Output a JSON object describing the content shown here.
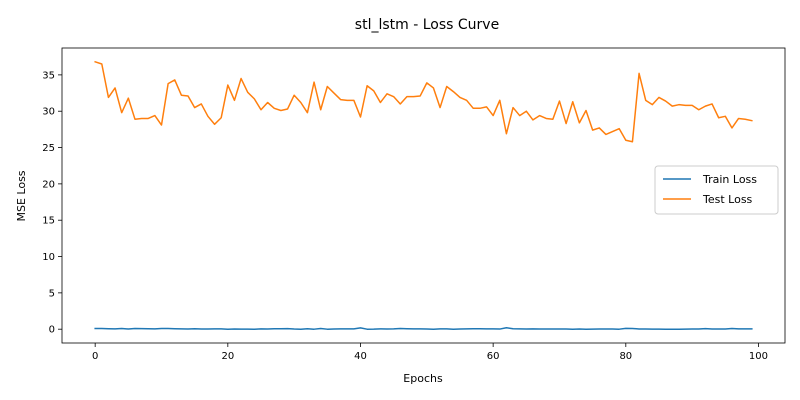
{
  "chart_data": {
    "type": "line",
    "title": "stl_lstm - Loss Curve",
    "xlabel": "Epochs",
    "ylabel": "MSE Loss",
    "xlim": [
      -5,
      104
    ],
    "ylim": [
      -1.9,
      38.7
    ],
    "x_ticks": [
      0,
      20,
      40,
      60,
      80,
      100
    ],
    "y_ticks": [
      0,
      5,
      10,
      15,
      20,
      25,
      30,
      35
    ],
    "grid": false,
    "legend_position": "center-right",
    "series": [
      {
        "name": "Train Loss",
        "color": "#1f77b4",
        "values": [
          0.1,
          0.1,
          0.07,
          0.05,
          0.09,
          0.03,
          0.1,
          0.08,
          0.07,
          0.05,
          0.1,
          0.09,
          0.07,
          0.05,
          0.03,
          0.06,
          0.02,
          0.03,
          0.05,
          0.04,
          0.0,
          0.02,
          0.01,
          0.01,
          0.0,
          0.05,
          0.03,
          0.06,
          0.07,
          0.08,
          0.03,
          0.0,
          0.07,
          0.0,
          0.09,
          0.0,
          0.02,
          0.04,
          0.04,
          0.05,
          0.18,
          0.0,
          0.01,
          0.05,
          0.03,
          0.04,
          0.1,
          0.07,
          0.05,
          0.05,
          0.02,
          0.0,
          0.04,
          0.05,
          0.0,
          0.02,
          0.05,
          0.07,
          0.06,
          0.05,
          0.04,
          0.02,
          0.2,
          0.06,
          0.04,
          0.03,
          0.04,
          0.03,
          0.03,
          0.03,
          0.02,
          0.03,
          0.0,
          0.02,
          0.0,
          0.01,
          0.02,
          0.02,
          0.02,
          0.0,
          0.12,
          0.1,
          0.03,
          0.02,
          0.01,
          0.01,
          0.0,
          0.0,
          0.0,
          0.01,
          0.03,
          0.02,
          0.08,
          0.03,
          0.03,
          0.03,
          0.09,
          0.05,
          0.05,
          0.04
        ]
      },
      {
        "name": "Test Loss",
        "color": "#ff7f0e",
        "values": [
          36.8,
          36.5,
          31.9,
          33.2,
          29.8,
          31.8,
          28.9,
          29.0,
          29.0,
          29.4,
          28.1,
          33.8,
          34.3,
          32.2,
          32.1,
          30.5,
          31.0,
          29.3,
          28.2,
          29.1,
          33.6,
          31.5,
          34.5,
          32.6,
          31.7,
          30.2,
          31.2,
          30.4,
          30.1,
          30.3,
          32.2,
          31.2,
          29.8,
          34.0,
          30.2,
          33.4,
          32.5,
          31.6,
          31.5,
          31.5,
          29.2,
          33.5,
          32.8,
          31.2,
          32.4,
          32.0,
          31.0,
          32.0,
          32.0,
          32.1,
          33.9,
          33.2,
          30.5,
          33.4,
          32.7,
          31.9,
          31.5,
          30.4,
          30.4,
          30.6,
          29.4,
          31.5,
          26.9,
          30.5,
          29.4,
          30.0,
          28.8,
          29.4,
          29.0,
          28.9,
          31.4,
          28.3,
          31.3,
          28.4,
          30.1,
          27.4,
          27.7,
          26.8,
          27.2,
          27.6,
          26.0,
          25.8,
          35.2,
          31.5,
          30.9,
          31.9,
          31.4,
          30.7,
          30.9,
          30.8,
          30.8,
          30.2,
          30.7,
          31.0,
          29.1,
          29.3,
          27.7,
          29.0,
          28.9,
          28.7
        ]
      }
    ]
  }
}
